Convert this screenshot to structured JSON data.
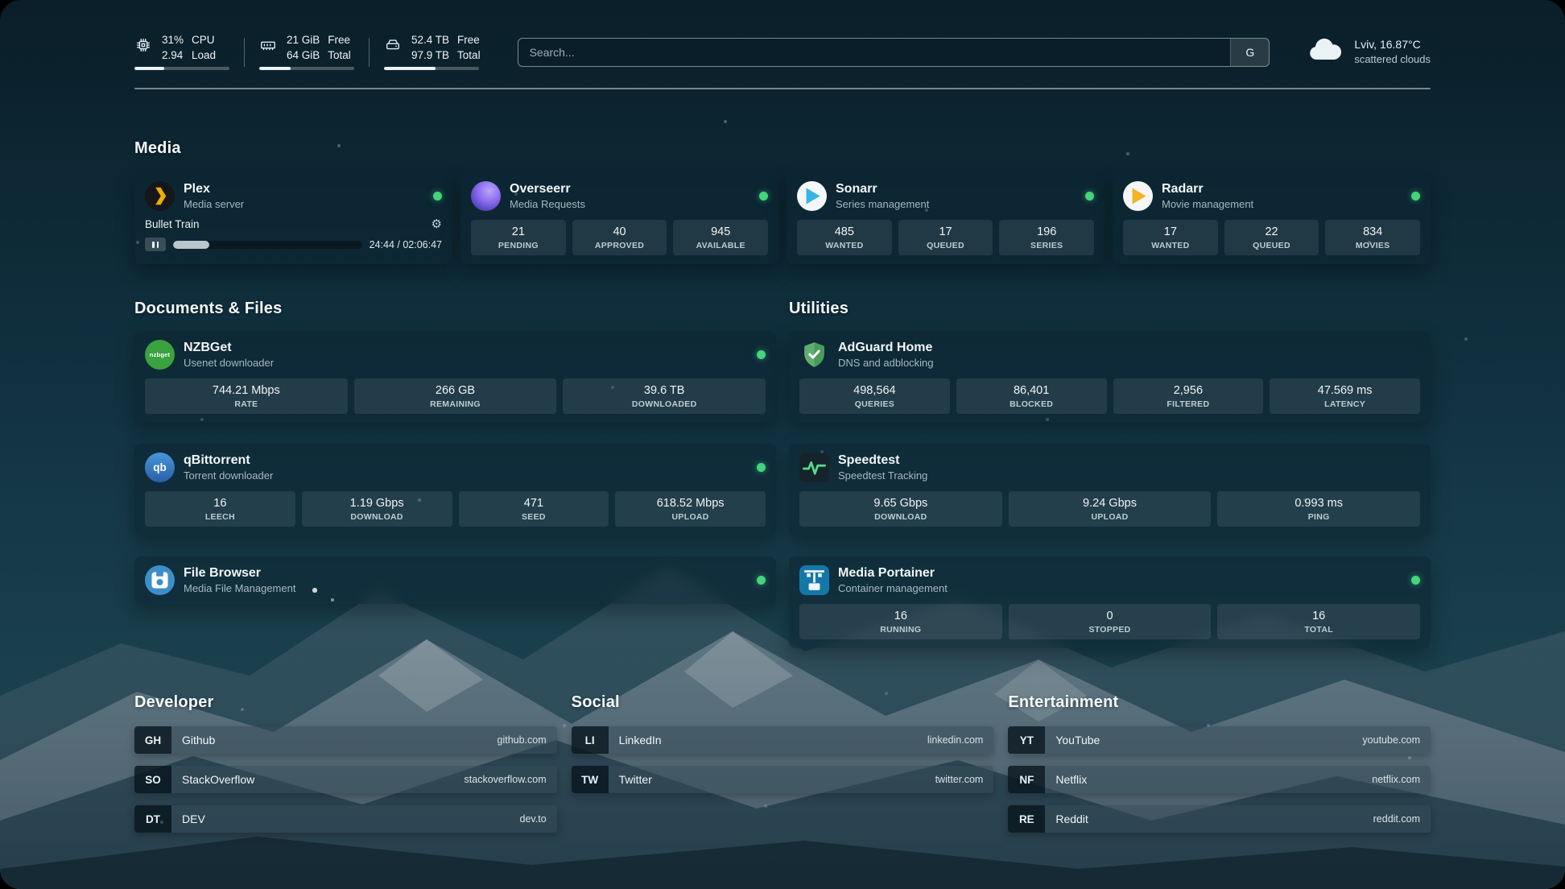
{
  "topbar": {
    "cpu": {
      "line1": "31%",
      "line2": "2.94",
      "label1": "CPU",
      "label2": "Load",
      "progress": 31
    },
    "memory": {
      "line1": "21 GiB",
      "line2": "64 GiB",
      "label1": "Free",
      "label2": "Total",
      "progress": 33
    },
    "disk": {
      "line1": "52.4 TB",
      "line2": "97.9 TB",
      "label1": "Free",
      "label2": "Total",
      "progress": 54
    },
    "search": {
      "placeholder": "Search...",
      "provider": "G"
    },
    "weather": {
      "location": "Lviv, 16.87°C",
      "condition": "scattered clouds"
    }
  },
  "media": {
    "title": "Media",
    "plex": {
      "name": "Plex",
      "subtitle": "Media server",
      "now_playing": "Bullet Train",
      "time": "24:44 / 02:06:47",
      "progress": 19
    },
    "overseerr": {
      "name": "Overseerr",
      "subtitle": "Media Requests",
      "stats": [
        {
          "value": "21",
          "label": "PENDING"
        },
        {
          "value": "40",
          "label": "APPROVED"
        },
        {
          "value": "945",
          "label": "AVAILABLE"
        }
      ]
    },
    "sonarr": {
      "name": "Sonarr",
      "subtitle": "Series management",
      "stats": [
        {
          "value": "485",
          "label": "WANTED"
        },
        {
          "value": "17",
          "label": "QUEUED"
        },
        {
          "value": "196",
          "label": "SERIES"
        }
      ]
    },
    "radarr": {
      "name": "Radarr",
      "subtitle": "Movie management",
      "stats": [
        {
          "value": "17",
          "label": "WANTED"
        },
        {
          "value": "22",
          "label": "QUEUED"
        },
        {
          "value": "834",
          "label": "MOVIES"
        }
      ]
    }
  },
  "documents": {
    "title": "Documents & Files",
    "nzbget": {
      "name": "NZBGet",
      "subtitle": "Usenet downloader",
      "icon_text": "nzbget",
      "stats": [
        {
          "value": "744.21 Mbps",
          "label": "RATE"
        },
        {
          "value": "266 GB",
          "label": "REMAINING"
        },
        {
          "value": "39.6 TB",
          "label": "DOWNLOADED"
        }
      ]
    },
    "qbittorrent": {
      "name": "qBittorrent",
      "subtitle": "Torrent downloader",
      "icon_text": "qb",
      "stats": [
        {
          "value": "16",
          "label": "LEECH"
        },
        {
          "value": "1.19 Gbps",
          "label": "DOWNLOAD"
        },
        {
          "value": "471",
          "label": "SEED"
        },
        {
          "value": "618.52 Mbps",
          "label": "UPLOAD"
        }
      ]
    },
    "filebrowser": {
      "name": "File Browser",
      "subtitle": "Media File Management"
    }
  },
  "utilities": {
    "title": "Utilities",
    "adguard": {
      "name": "AdGuard Home",
      "subtitle": "DNS and adblocking",
      "stats": [
        {
          "value": "498,564",
          "label": "QUERIES"
        },
        {
          "value": "86,401",
          "label": "BLOCKED"
        },
        {
          "value": "2,956",
          "label": "FILTERED"
        },
        {
          "value": "47.569 ms",
          "label": "LATENCY"
        }
      ]
    },
    "speedtest": {
      "name": "Speedtest",
      "subtitle": "Speedtest Tracking",
      "stats": [
        {
          "value": "9.65 Gbps",
          "label": "DOWNLOAD"
        },
        {
          "value": "9.24 Gbps",
          "label": "UPLOAD"
        },
        {
          "value": "0.993 ms",
          "label": "PING"
        }
      ]
    },
    "portainer": {
      "name": "Media Portainer",
      "subtitle": "Container management",
      "stats": [
        {
          "value": "16",
          "label": "RUNNING"
        },
        {
          "value": "0",
          "label": "STOPPED"
        },
        {
          "value": "16",
          "label": "TOTAL"
        }
      ]
    }
  },
  "links": {
    "developer": {
      "title": "Developer",
      "items": [
        {
          "abbr": "GH",
          "name": "Github",
          "url": "github.com"
        },
        {
          "abbr": "SO",
          "name": "StackOverflow",
          "url": "stackoverflow.com"
        },
        {
          "abbr": "DT",
          "name": "DEV",
          "url": "dev.to"
        }
      ]
    },
    "social": {
      "title": "Social",
      "items": [
        {
          "abbr": "LI",
          "name": "LinkedIn",
          "url": "linkedin.com"
        },
        {
          "abbr": "TW",
          "name": "Twitter",
          "url": "twitter.com"
        }
      ]
    },
    "entertainment": {
      "title": "Entertainment",
      "items": [
        {
          "abbr": "YT",
          "name": "YouTube",
          "url": "youtube.com"
        },
        {
          "abbr": "NF",
          "name": "Netflix",
          "url": "netflix.com"
        },
        {
          "abbr": "RE",
          "name": "Reddit",
          "url": "reddit.com"
        }
      ]
    }
  },
  "colors": {
    "status_online": "#44d47c",
    "accent": "#e9f1f4"
  }
}
